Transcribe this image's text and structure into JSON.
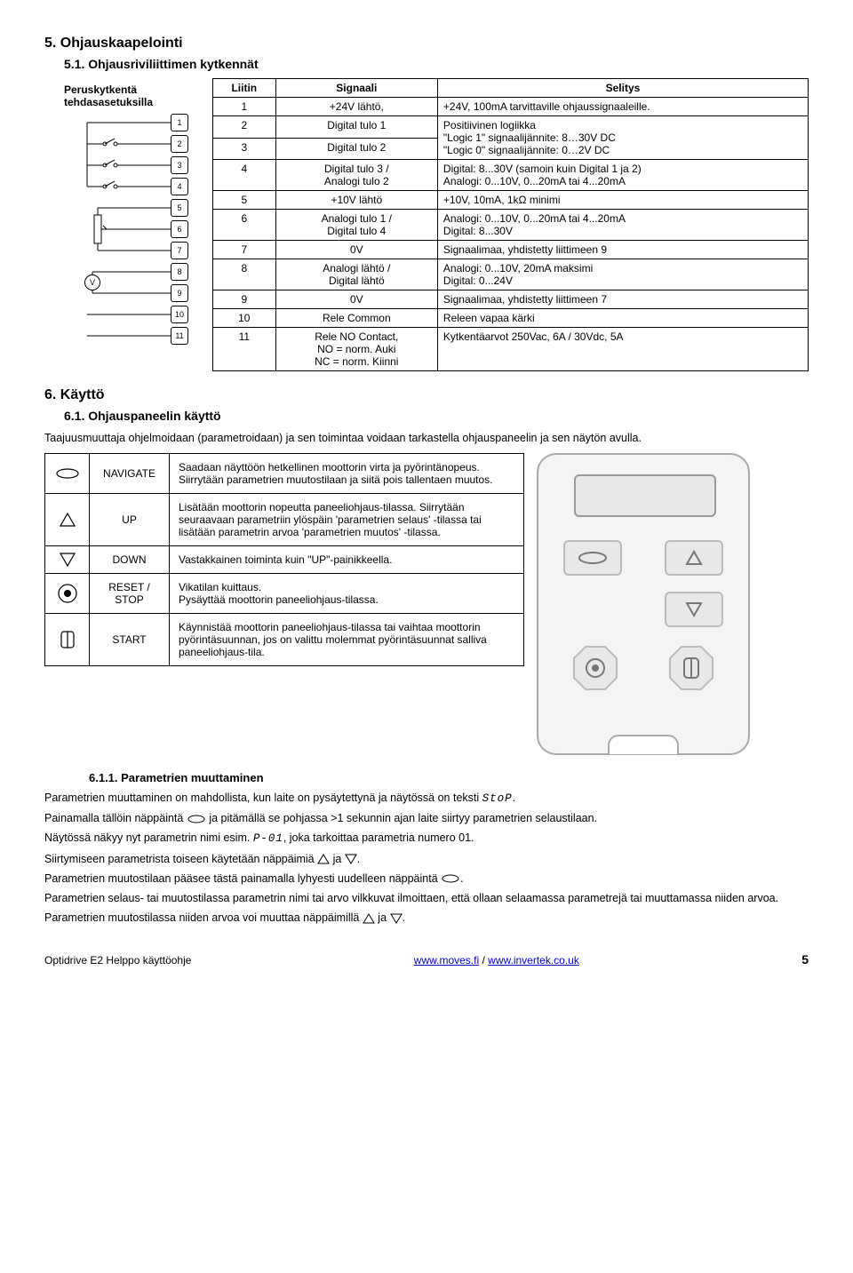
{
  "headings": {
    "h5": "5. Ohjauskaapelointi",
    "h51": "5.1. Ohjausriviliittimen kytkennät",
    "h6": "6. Käyttö",
    "h61": "6.1. Ohjauspaneelin käyttö",
    "h611": "6.1.1. Parametrien muuttaminen"
  },
  "intro_label": "Peruskytkentä tehdasasetuksilla",
  "term_numbers": [
    "1",
    "2",
    "3",
    "4",
    "5",
    "6",
    "7",
    "8",
    "9",
    "10",
    "11"
  ],
  "voltmeter": "V",
  "term_table": {
    "headers": [
      "Liitin",
      "Signaali",
      "Selitys"
    ],
    "rows": [
      {
        "n": "1",
        "sig": "+24V lähtö,",
        "desc": "+24V, 100mA tarvittaville ohjaussignaaleille."
      },
      {
        "n": "2",
        "sig": "Digital tulo 1",
        "desc": "Positiivinen logiikka\n\"Logic 1\" signaalijännite: 8…30V DC\n\"Logic 0\" signaalijännite: 0…2V DC",
        "rowspan": 2
      },
      {
        "n": "3",
        "sig": "Digital tulo 2",
        "desc": null
      },
      {
        "n": "4",
        "sig": "Digital tulo 3 /\nAnalogi tulo 2",
        "desc": "Digital: 8...30V (samoin kuin Digital 1 ja 2)\nAnalogi: 0...10V, 0...20mA tai 4...20mA"
      },
      {
        "n": "5",
        "sig": "+10V lähtö",
        "desc": "+10V, 10mA, 1kΩ minimi"
      },
      {
        "n": "6",
        "sig": "Analogi tulo 1 /\nDigital tulo 4",
        "desc": "Analogi: 0...10V, 0...20mA tai 4...20mA\nDigital:  8...30V"
      },
      {
        "n": "7",
        "sig": "0V",
        "desc": "Signaalimaa, yhdistetty liittimeen 9"
      },
      {
        "n": "8",
        "sig": "Analogi lähtö /\nDigital lähtö",
        "desc": "Analogi: 0...10V, 20mA maksimi\nDigital:  0...24V"
      },
      {
        "n": "9",
        "sig": "0V",
        "desc": "Signaalimaa, yhdistetty liittimeen 7"
      },
      {
        "n": "10",
        "sig": "Rele Common",
        "desc": "Releen vapaa kärki"
      },
      {
        "n": "11",
        "sig": "Rele NO Contact,\nNO = norm. Auki\nNC = norm. Kiinni",
        "desc": "Kytkentäarvot 250Vac, 6A / 30Vdc, 5A"
      }
    ]
  },
  "section61_intro": "Taajuusmuuttaja ohjelmoidaan (parametroidaan) ja sen toimintaa voidaan tarkastella ohjauspaneelin ja sen näytön avulla.",
  "keypad": [
    {
      "key": "NAVIGATE",
      "desc": "Saadaan näyttöön hetkellinen moottorin virta ja pyörintänopeus. Siirrytään parametrien muutostilaan ja siitä pois tallentaen muutos."
    },
    {
      "key": "UP",
      "desc": "Lisätään moottorin nopeutta paneeliohjaus-tilassa. Siirrytään seuraavaan parametriin ylöspäin 'parametrien selaus' -tilassa tai lisätään parametrin arvoa 'parametrien muutos' -tilassa."
    },
    {
      "key": "DOWN",
      "desc": "Vastakkainen toiminta kuin \"UP\"-painikkeella."
    },
    {
      "key": "RESET / STOP",
      "desc": "Vikatilan kuittaus.\nPysäyttää moottorin paneeliohjaus-tilassa."
    },
    {
      "key": "START",
      "desc": "Käynnistää moottorin paneeliohjaus-tilassa tai vaihtaa moottorin pyörintäsuunnan, jos on valittu molemmat pyörintäsuunnat salliva paneeliohjaus-tila."
    }
  ],
  "section611": {
    "p1a": "Parametrien muuttaminen on mahdollista, kun laite on pysäytettynä ja näytössä on teksti ",
    "p1seg": "StoP",
    "p1b": ".",
    "p2a": "Painamalla tällöin näppäintä ",
    "p2b": " ja pitämällä se pohjassa >1 sekunnin ajan laite siirtyy parametrien selaustilaan.",
    "p3a": "Näytössä näkyy nyt parametrin nimi esim. ",
    "p3seg": "P-01",
    "p3b": ", joka tarkoittaa parametria numero 01.",
    "p4a": "Siirtymiseen parametrista toiseen käytetään näppäimiä ",
    "p4b": " ja ",
    "p4c": ".",
    "p5a": "Parametrien muutostilaan pääsee tästä painamalla lyhyesti uudelleen näppäintä ",
    "p5b": ".",
    "p6": "Parametrien selaus- tai muutostilassa parametrin nimi tai arvo vilkkuvat ilmoittaen, että ollaan selaamassa parametrejä tai muuttamassa niiden arvoa.",
    "p7a": "Parametrien muutostilassa niiden arvoa voi muuttaa näppäimillä ",
    "p7b": " ja ",
    "p7c": "."
  },
  "footer": {
    "left": "Optidrive E2 Helppo käyttöohje",
    "link1": "www.moves.fi",
    "sep": " / ",
    "link2": "www.invertek.co.uk",
    "page": "5"
  }
}
